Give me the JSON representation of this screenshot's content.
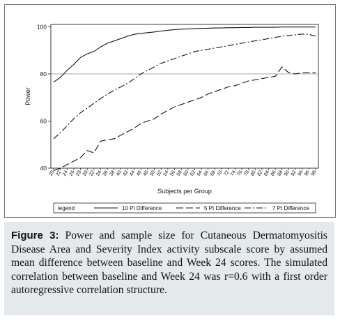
{
  "chart_data": {
    "type": "line",
    "xlabel": "Subjects per Group",
    "ylabel": "Power",
    "categories": [
      "20",
      "22",
      "24",
      "26",
      "28",
      "30",
      "32",
      "34",
      "36",
      "38",
      "40",
      "42",
      "44",
      "46",
      "48",
      "50",
      "52",
      "54",
      "56",
      "58",
      "60",
      "62",
      "64",
      "66",
      "68",
      "70",
      "72",
      "74",
      "76",
      "78",
      "80",
      "82",
      "84",
      "86",
      "88",
      "90",
      "92",
      "94",
      "96",
      "98"
    ],
    "yticks": [
      40,
      60,
      80,
      100
    ],
    "ylim": [
      40,
      101
    ],
    "reference_line": 80,
    "legend_title": "legend",
    "legend_position": "bottom",
    "series": [
      {
        "name": "10 Pt Difference",
        "style": "solid",
        "values": [
          76.5,
          78.5,
          81.5,
          84,
          87,
          88.5,
          89.5,
          91.5,
          93,
          94,
          95,
          96,
          96.8,
          97.2,
          97.5,
          97.8,
          98.2,
          98.5,
          98.8,
          99,
          99.1,
          99.2,
          99.3,
          99.4,
          99.5,
          99.5,
          99.6,
          99.6,
          99.7,
          99.7,
          99.8,
          99.8,
          99.8,
          99.8,
          99.9,
          99.9,
          99.9,
          99.9,
          99.9,
          99.9
        ]
      },
      {
        "name": "5 Pt Difference",
        "style": "long-dash",
        "values": [
          39,
          40,
          41.5,
          43,
          44.5,
          47.5,
          46.5,
          51.5,
          52,
          52.5,
          54,
          55.5,
          57,
          59,
          60,
          61,
          63,
          64.5,
          66,
          67,
          68,
          69,
          70,
          71.5,
          72.5,
          73.5,
          74.5,
          75,
          76,
          77,
          77.5,
          78,
          78.5,
          79,
          83,
          80.5,
          80,
          80.5,
          80.5,
          80.5
        ]
      },
      {
        "name": "7 Pt Difference",
        "style": "dash-dot",
        "values": [
          52.5,
          55,
          58,
          61,
          63.5,
          65.5,
          67.5,
          69.5,
          71.5,
          73,
          74.5,
          76,
          78,
          80,
          81.5,
          83,
          84.5,
          85.5,
          86.5,
          87.5,
          88.5,
          89.5,
          90,
          90.5,
          91,
          91.5,
          92,
          92.5,
          93,
          93.5,
          94,
          94.5,
          95,
          95.5,
          96,
          96.3,
          96.6,
          96.9,
          96.8,
          96
        ]
      }
    ]
  },
  "caption": {
    "label": "Figure 3:",
    "text": " Power and sample size for Cutaneous Dermatomyositis Disease Area and Severity Index activity subscale score by assumed mean difference between baseline and Week 24 scores. The simulated correlation between baseline and Week 24 was r=0.6 with a first order autoregressive correlation structure."
  }
}
